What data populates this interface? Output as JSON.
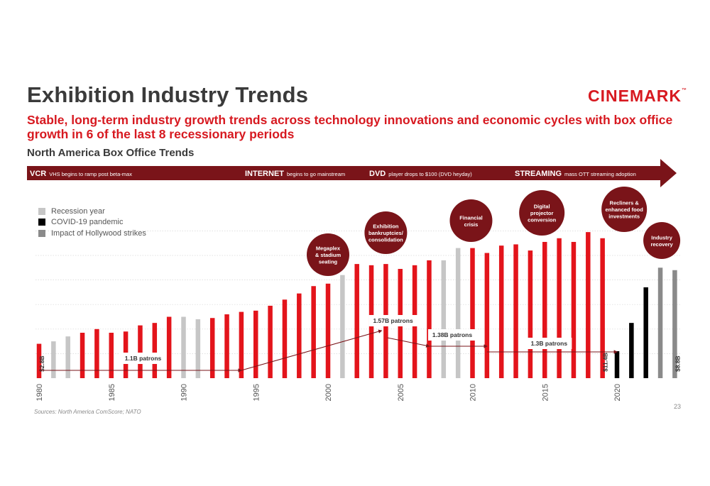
{
  "header": {
    "title": "Exhibition Industry Trends",
    "logo_text": "CINEMARK",
    "logo_tm": "™",
    "subtitle": "Stable, long-term industry growth trends across technology innovations and economic cycles with box office growth in 6 of the last 8 recessionary periods",
    "section": "North America Box Office Trends"
  },
  "banner": {
    "color": "#7a1419",
    "eras": [
      {
        "name": "VCR",
        "desc": "VHS begins to ramp post beta-max"
      },
      {
        "name": "INTERNET",
        "desc": "begins to go mainstream"
      },
      {
        "name": "DVD",
        "desc": "player drops to $100 (DVD heyday)"
      },
      {
        "name": "STREAMING",
        "desc": "mass OTT streaming adoption"
      }
    ]
  },
  "legend": [
    {
      "label": "Recession year",
      "color": "#c6c6c6"
    },
    {
      "label": "COVID-19 pandemic",
      "color": "#000000"
    },
    {
      "label": "Impact of Hollywood strikes",
      "color": "#8a8a8a"
    }
  ],
  "footer": {
    "source": "Sources:  North America ComScore; NATO",
    "page": "23"
  },
  "chart_data": {
    "type": "bar",
    "title": "North America Box Office Trends",
    "xlabel": "",
    "ylabel": "",
    "grid": true,
    "legend_position": "top-left",
    "x_tick_labels": [
      "1980",
      "1985",
      "1990",
      "1995",
      "2000",
      "2005",
      "2010",
      "2015",
      "2020"
    ],
    "colors": {
      "normal": "#e3141b",
      "recession": "#c6c6c6",
      "covid": "#000000",
      "strikes": "#8a8a8a"
    },
    "bars": [
      {
        "year": 1980,
        "value": 2.8,
        "category": "normal"
      },
      {
        "year": 1981,
        "value": 3.0,
        "category": "recession"
      },
      {
        "year": 1982,
        "value": 3.4,
        "category": "recession"
      },
      {
        "year": 1983,
        "value": 3.7,
        "category": "normal"
      },
      {
        "year": 1984,
        "value": 4.0,
        "category": "normal"
      },
      {
        "year": 1985,
        "value": 3.7,
        "category": "normal"
      },
      {
        "year": 1986,
        "value": 3.8,
        "category": "normal"
      },
      {
        "year": 1987,
        "value": 4.3,
        "category": "normal"
      },
      {
        "year": 1988,
        "value": 4.5,
        "category": "normal"
      },
      {
        "year": 1989,
        "value": 5.0,
        "category": "normal"
      },
      {
        "year": 1990,
        "value": 5.0,
        "category": "recession"
      },
      {
        "year": 1991,
        "value": 4.8,
        "category": "recession"
      },
      {
        "year": 1992,
        "value": 4.9,
        "category": "normal"
      },
      {
        "year": 1993,
        "value": 5.2,
        "category": "normal"
      },
      {
        "year": 1994,
        "value": 5.4,
        "category": "normal"
      },
      {
        "year": 1995,
        "value": 5.5,
        "category": "normal"
      },
      {
        "year": 1996,
        "value": 5.9,
        "category": "normal"
      },
      {
        "year": 1997,
        "value": 6.4,
        "category": "normal"
      },
      {
        "year": 1998,
        "value": 6.9,
        "category": "normal"
      },
      {
        "year": 1999,
        "value": 7.5,
        "category": "normal"
      },
      {
        "year": 2000,
        "value": 7.7,
        "category": "normal"
      },
      {
        "year": 2001,
        "value": 8.4,
        "category": "recession"
      },
      {
        "year": 2002,
        "value": 9.3,
        "category": "normal"
      },
      {
        "year": 2003,
        "value": 9.2,
        "category": "normal"
      },
      {
        "year": 2004,
        "value": 9.3,
        "category": "normal"
      },
      {
        "year": 2005,
        "value": 8.9,
        "category": "normal"
      },
      {
        "year": 2006,
        "value": 9.2,
        "category": "normal"
      },
      {
        "year": 2007,
        "value": 9.6,
        "category": "normal"
      },
      {
        "year": 2008,
        "value": 9.6,
        "category": "recession"
      },
      {
        "year": 2009,
        "value": 10.6,
        "category": "recession"
      },
      {
        "year": 2010,
        "value": 10.6,
        "category": "normal"
      },
      {
        "year": 2011,
        "value": 10.2,
        "category": "normal"
      },
      {
        "year": 2012,
        "value": 10.8,
        "category": "normal"
      },
      {
        "year": 2013,
        "value": 10.9,
        "category": "normal"
      },
      {
        "year": 2014,
        "value": 10.4,
        "category": "normal"
      },
      {
        "year": 2015,
        "value": 11.1,
        "category": "normal"
      },
      {
        "year": 2016,
        "value": 11.4,
        "category": "normal"
      },
      {
        "year": 2017,
        "value": 11.1,
        "category": "normal"
      },
      {
        "year": 2018,
        "value": 11.9,
        "category": "normal"
      },
      {
        "year": 2019,
        "value": 11.4,
        "category": "normal"
      },
      {
        "year": 2020,
        "value": 2.2,
        "category": "covid"
      },
      {
        "year": 2021,
        "value": 4.5,
        "category": "covid"
      },
      {
        "year": 2022,
        "value": 7.4,
        "category": "covid"
      },
      {
        "year": 2023,
        "value": 9.0,
        "category": "strikes"
      },
      {
        "year": 2024,
        "value": 8.8,
        "category": "strikes"
      }
    ],
    "value_labels": [
      {
        "year": 1980,
        "text": "$2.8B"
      },
      {
        "year": 2019,
        "text": "$11.4B"
      },
      {
        "year": 2024,
        "text": "$8.8B"
      }
    ],
    "patron_trend": [
      {
        "label": "1.1B patrons",
        "start_year": 1980,
        "end_year": 1994
      },
      {
        "label": "1.57B patrons",
        "start_year": 1994,
        "end_year": 2004
      },
      {
        "label": "1.38B patrons",
        "start_year": 2004,
        "end_year": 2011
      },
      {
        "label": "1.3B patrons",
        "start_year": 2011,
        "end_year": 2020
      }
    ],
    "annotations": [
      {
        "text": "Megaplex\n& stadium\nseating",
        "year": 2000
      },
      {
        "text": "Exhibition\nbankruptcies/\nconsolidation",
        "year": 2004
      },
      {
        "text": "Financial\ncrisis",
        "year": 2009.9
      },
      {
        "text": "Digital\nprojector\nconversion",
        "year": 2014.8
      },
      {
        "text": "Recliners &\nenhanced food\ninvestments",
        "year": 2020.5
      },
      {
        "text": "Industry\nrecovery",
        "year": 2023.1
      }
    ]
  }
}
